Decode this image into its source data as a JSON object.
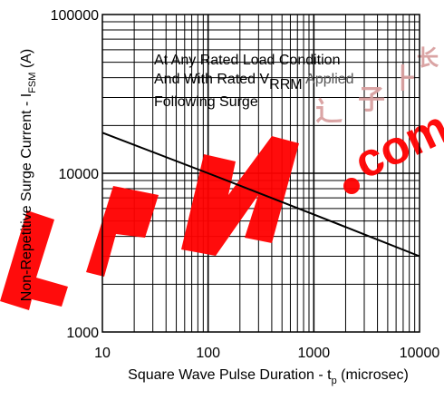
{
  "chart_data": {
    "type": "line",
    "x_scale": "log",
    "y_scale": "log",
    "xlim": [
      10,
      10000
    ],
    "ylim": [
      1000,
      100000
    ],
    "x_ticks": [
      "10",
      "100",
      "1000",
      "10000"
    ],
    "y_ticks": [
      "100000",
      "10000",
      "1000"
    ],
    "grid": true,
    "xlabel": {
      "main": "Square Wave Pulse Duration - t",
      "sub": "p",
      "suffix": " (microsec)"
    },
    "ylabel": {
      "main": "Non-Repetitive Surge Current - I",
      "sub": "FSM",
      "suffix": " (A)"
    },
    "annotation": {
      "line1": "At Any Rated Load Condition",
      "line2_main": "And With Rated V",
      "line2_sub": "RRM",
      "line2_suffix": " Applied",
      "line3": "Following Surge"
    },
    "series": [
      {
        "color": "#000000",
        "x": [
          10,
          100,
          1000,
          10000
        ],
        "y": [
          18000,
          10000,
          5500,
          3000
        ]
      }
    ]
  },
  "watermark": {
    "logo_text": "EPW",
    "dot_text": ".com",
    "color": "#ff0000"
  }
}
